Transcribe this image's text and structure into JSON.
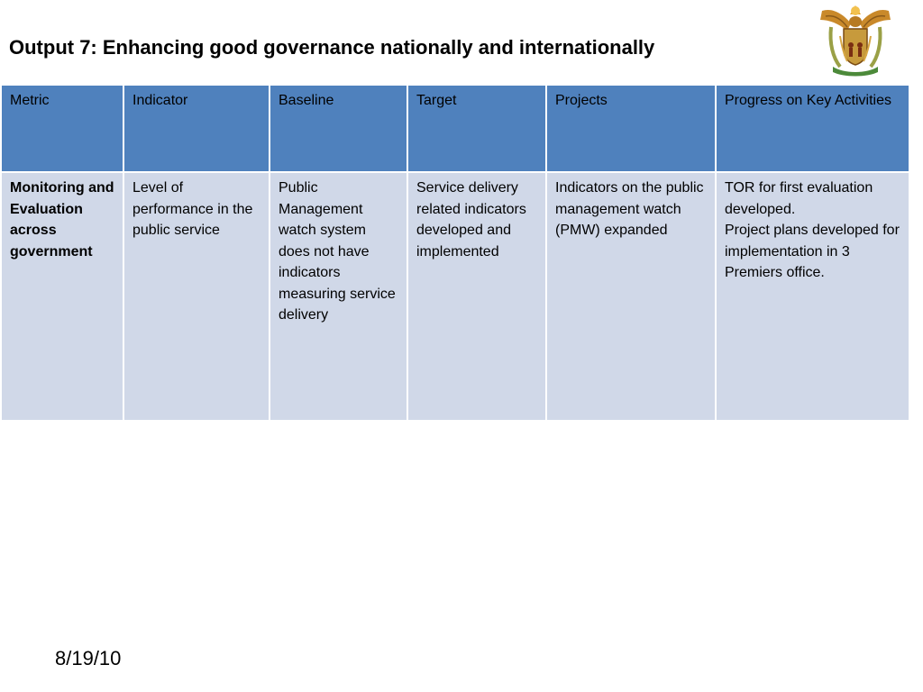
{
  "slide": {
    "title": "Output 7: Enhancing good governance nationally and internationally",
    "date": "8/19/10"
  },
  "table": {
    "headers": [
      "Metric",
      "Indicator",
      "Baseline",
      "Target",
      "Projects",
      "Progress on Key Activities"
    ],
    "row": {
      "metric": "Monitoring and Evaluation across government",
      "indicator": "Level of performance in the public service",
      "baseline": "Public Management watch system does not have indicators measuring service delivery",
      "target": "Service delivery related indicators developed and implemented",
      "projects": "Indicators on the public management watch (PMW) expanded",
      "progress": "TOR for first evaluation developed.\n Project plans developed for implementation in 3 Premiers office."
    }
  },
  "colors": {
    "header_bg": "#4f81bd",
    "cell_bg": "#d0d8e8"
  },
  "icons": {
    "logo": "south-africa-coat-of-arms-icon"
  }
}
